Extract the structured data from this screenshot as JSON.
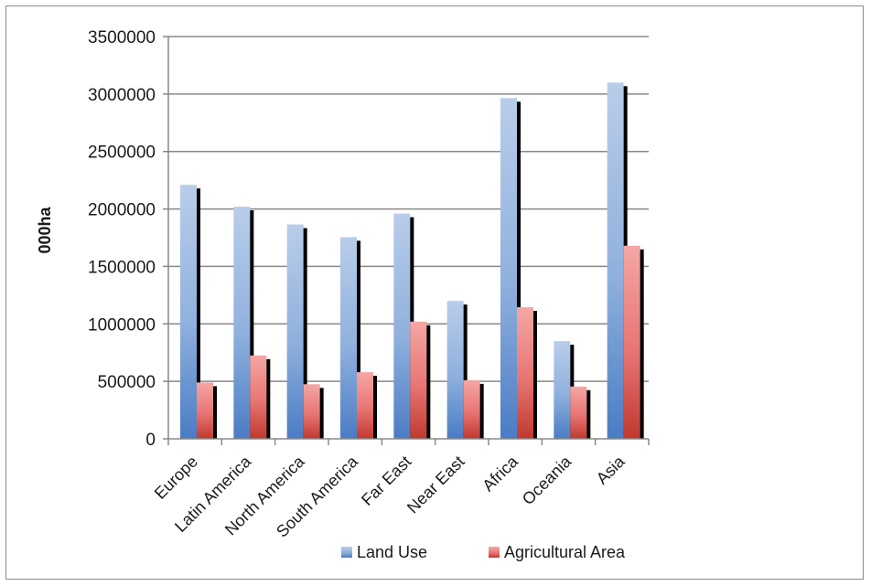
{
  "chart_data": {
    "type": "bar",
    "categories": [
      "Europe",
      "Latin America",
      "North America",
      "South America",
      "Far East",
      "Near East",
      "Africa",
      "Oceania",
      "Asia"
    ],
    "series": [
      {
        "name": "Land Use",
        "values": [
          2210000,
          2020000,
          1865000,
          1755000,
          1960000,
          1200000,
          2965000,
          850000,
          3100000
        ]
      },
      {
        "name": "Agricultural Area",
        "values": [
          490000,
          725000,
          475000,
          580000,
          1020000,
          510000,
          1145000,
          455000,
          1680000
        ]
      }
    ],
    "title": "",
    "xlabel": "",
    "ylabel": "000ha",
    "ylim": [
      0,
      3500000
    ],
    "yticks": [
      0,
      500000,
      1000000,
      1500000,
      2000000,
      2500000,
      3000000,
      3500000
    ],
    "ytick_labels": [
      "0",
      "500000",
      "1000000",
      "1500000",
      "2000000",
      "2500000",
      "3000000",
      "3500000"
    ],
    "grid": true,
    "legend": "bottom",
    "colors": {
      "Land Use": "#4f81bd",
      "Agricultural Area": "#c0504d",
      "shadow": "#000000",
      "grid": "#888888"
    }
  }
}
